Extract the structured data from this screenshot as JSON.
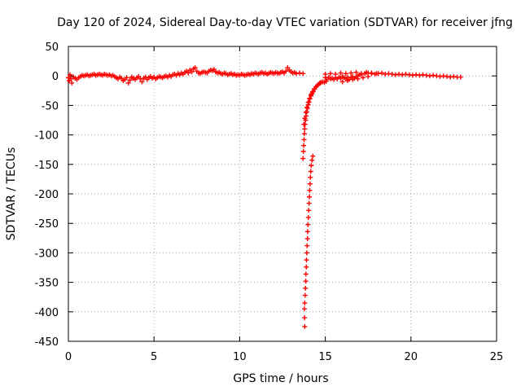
{
  "chart_data": {
    "type": "scatter",
    "title": "Day 120 of 2024, Sidereal Day-to-day VTEC variation (SDTVAR) for receiver jfng",
    "xlabel": "GPS time / hours",
    "ylabel": "SDTVAR / TECUs",
    "xlim": [
      0,
      25
    ],
    "ylim": [
      -450,
      50
    ],
    "xticks": [
      0,
      5,
      10,
      15,
      20,
      25
    ],
    "yticks": [
      50,
      0,
      -50,
      -100,
      -150,
      -200,
      -250,
      -300,
      -350,
      -400,
      -450
    ],
    "grid": true,
    "marker": "plus",
    "series_color": "#ff0000",
    "series": [
      {
        "name": "SDTVAR",
        "points": [
          [
            0.0,
            -3
          ],
          [
            0.05,
            -8
          ],
          [
            0.1,
            2
          ],
          [
            0.15,
            -5
          ],
          [
            0.2,
            -12
          ],
          [
            0.3,
            -2
          ],
          [
            0.4,
            -4
          ],
          [
            0.5,
            -6
          ],
          [
            0.6,
            -3
          ],
          [
            0.7,
            -1
          ],
          [
            0.8,
            1
          ],
          [
            0.9,
            0
          ],
          [
            1.0,
            1
          ],
          [
            1.1,
            2
          ],
          [
            1.2,
            0
          ],
          [
            1.3,
            1
          ],
          [
            1.4,
            2
          ],
          [
            1.5,
            3
          ],
          [
            1.6,
            1
          ],
          [
            1.7,
            2
          ],
          [
            1.8,
            3
          ],
          [
            1.9,
            2
          ],
          [
            2.0,
            1
          ],
          [
            2.1,
            3
          ],
          [
            2.2,
            2
          ],
          [
            2.3,
            1
          ],
          [
            2.4,
            2
          ],
          [
            2.5,
            0
          ],
          [
            2.6,
            1
          ],
          [
            2.7,
            -1
          ],
          [
            2.8,
            -3
          ],
          [
            2.9,
            -5
          ],
          [
            3.0,
            -2
          ],
          [
            3.1,
            -4
          ],
          [
            3.2,
            -8
          ],
          [
            3.3,
            -6
          ],
          [
            3.4,
            -3
          ],
          [
            3.5,
            -12
          ],
          [
            3.6,
            -7
          ],
          [
            3.7,
            -2
          ],
          [
            3.8,
            -4
          ],
          [
            3.9,
            -6
          ],
          [
            4.0,
            -3
          ],
          [
            4.1,
            -1
          ],
          [
            4.2,
            -5
          ],
          [
            4.3,
            -10
          ],
          [
            4.4,
            -4
          ],
          [
            4.5,
            -2
          ],
          [
            4.6,
            -6
          ],
          [
            4.7,
            -3
          ],
          [
            4.8,
            -1
          ],
          [
            4.9,
            -4
          ],
          [
            5.0,
            -2
          ],
          [
            5.1,
            -5
          ],
          [
            5.2,
            -3
          ],
          [
            5.3,
            -1
          ],
          [
            5.4,
            -2
          ],
          [
            5.5,
            -3
          ],
          [
            5.6,
            -1
          ],
          [
            5.7,
            0
          ],
          [
            5.8,
            -2
          ],
          [
            5.9,
            1
          ],
          [
            6.0,
            -1
          ],
          [
            6.1,
            2
          ],
          [
            6.2,
            3
          ],
          [
            6.3,
            1
          ],
          [
            6.4,
            4
          ],
          [
            6.5,
            2
          ],
          [
            6.6,
            5
          ],
          [
            6.7,
            3
          ],
          [
            6.8,
            6
          ],
          [
            6.9,
            8
          ],
          [
            7.0,
            5
          ],
          [
            7.1,
            10
          ],
          [
            7.2,
            7
          ],
          [
            7.3,
            12
          ],
          [
            7.4,
            14
          ],
          [
            7.5,
            8
          ],
          [
            7.6,
            5
          ],
          [
            7.7,
            4
          ],
          [
            7.8,
            6
          ],
          [
            7.9,
            7
          ],
          [
            8.0,
            6
          ],
          [
            8.1,
            5
          ],
          [
            8.2,
            8
          ],
          [
            8.3,
            10
          ],
          [
            8.4,
            9
          ],
          [
            8.5,
            11
          ],
          [
            8.6,
            7
          ],
          [
            8.7,
            5
          ],
          [
            8.8,
            6
          ],
          [
            8.9,
            4
          ],
          [
            9.0,
            3
          ],
          [
            9.1,
            5
          ],
          [
            9.2,
            4
          ],
          [
            9.3,
            2
          ],
          [
            9.4,
            3
          ],
          [
            9.5,
            4
          ],
          [
            9.6,
            2
          ],
          [
            9.7,
            3
          ],
          [
            9.8,
            1
          ],
          [
            9.9,
            2
          ],
          [
            10.0,
            1
          ],
          [
            10.1,
            3
          ],
          [
            10.2,
            2
          ],
          [
            10.3,
            1
          ],
          [
            10.4,
            2
          ],
          [
            10.5,
            3
          ],
          [
            10.6,
            2
          ],
          [
            10.7,
            4
          ],
          [
            10.8,
            3
          ],
          [
            10.9,
            5
          ],
          [
            11.0,
            4
          ],
          [
            11.1,
            3
          ],
          [
            11.2,
            5
          ],
          [
            11.3,
            6
          ],
          [
            11.4,
            4
          ],
          [
            11.5,
            5
          ],
          [
            11.6,
            3
          ],
          [
            11.7,
            4
          ],
          [
            11.8,
            6
          ],
          [
            11.9,
            5
          ],
          [
            12.0,
            4
          ],
          [
            12.1,
            6
          ],
          [
            12.2,
            5
          ],
          [
            12.3,
            4
          ],
          [
            12.4,
            6
          ],
          [
            12.5,
            7
          ],
          [
            12.6,
            5
          ],
          [
            12.7,
            8
          ],
          [
            12.8,
            14
          ],
          [
            12.9,
            10
          ],
          [
            13.0,
            7
          ],
          [
            13.1,
            5
          ],
          [
            13.2,
            6
          ],
          [
            13.3,
            4
          ],
          [
            13.5,
            5
          ],
          [
            13.7,
            4
          ],
          [
            13.8,
            -425
          ],
          [
            13.79,
            -410
          ],
          [
            13.78,
            -395
          ],
          [
            13.8,
            -385
          ],
          [
            13.82,
            -372
          ],
          [
            13.84,
            -360
          ],
          [
            13.86,
            -348
          ],
          [
            13.87,
            -336
          ],
          [
            13.89,
            -324
          ],
          [
            13.9,
            -312
          ],
          [
            13.92,
            -300
          ],
          [
            13.94,
            -288
          ],
          [
            13.96,
            -276
          ],
          [
            13.97,
            -264
          ],
          [
            13.99,
            -252
          ],
          [
            14.01,
            -240
          ],
          [
            14.03,
            -228
          ],
          [
            14.05,
            -216
          ],
          [
            14.07,
            -205
          ],
          [
            14.09,
            -194
          ],
          [
            14.11,
            -183
          ],
          [
            14.13,
            -172
          ],
          [
            14.15,
            -162
          ],
          [
            14.18,
            -152
          ],
          [
            14.22,
            -143
          ],
          [
            14.27,
            -136
          ],
          [
            13.7,
            -140
          ],
          [
            13.72,
            -128
          ],
          [
            13.74,
            -118
          ],
          [
            13.76,
            -108
          ],
          [
            13.78,
            -98
          ],
          [
            13.8,
            -90
          ],
          [
            13.82,
            -82
          ],
          [
            13.85,
            -75
          ],
          [
            13.88,
            -68
          ],
          [
            13.92,
            -61
          ],
          [
            13.96,
            -55
          ],
          [
            14.0,
            -49
          ],
          [
            14.05,
            -44
          ],
          [
            14.1,
            -39
          ],
          [
            14.16,
            -34
          ],
          [
            14.22,
            -30
          ],
          [
            14.3,
            -26
          ],
          [
            14.38,
            -22
          ],
          [
            14.46,
            -19
          ],
          [
            14.55,
            -16
          ],
          [
            14.65,
            -13
          ],
          [
            14.75,
            -11
          ],
          [
            14.85,
            -10
          ],
          [
            14.95,
            -11
          ],
          [
            15.05,
            -9
          ],
          [
            13.75,
            -82
          ],
          [
            13.8,
            -72
          ],
          [
            13.86,
            -62
          ],
          [
            13.93,
            -53
          ],
          [
            14.0,
            -45
          ],
          [
            14.08,
            -38
          ],
          [
            14.17,
            -32
          ],
          [
            14.26,
            -27
          ],
          [
            14.36,
            -22
          ],
          [
            14.47,
            -18
          ],
          [
            14.58,
            -15
          ],
          [
            14.7,
            -12
          ],
          [
            15.0,
            -3
          ],
          [
            15.1,
            -6
          ],
          [
            15.2,
            -2
          ],
          [
            15.3,
            -5
          ],
          [
            15.4,
            -4
          ],
          [
            15.5,
            -6
          ],
          [
            15.6,
            -3
          ],
          [
            15.7,
            -5
          ],
          [
            15.8,
            -2
          ],
          [
            15.9,
            -4
          ],
          [
            16.0,
            -1
          ],
          [
            16.1,
            -3
          ],
          [
            16.2,
            -5
          ],
          [
            16.3,
            -2
          ],
          [
            16.4,
            -6
          ],
          [
            16.5,
            -3
          ],
          [
            16.6,
            -1
          ],
          [
            16.7,
            -4
          ],
          [
            16.8,
            -2
          ],
          [
            16.9,
            0
          ],
          [
            17.0,
            2
          ],
          [
            15.0,
            3
          ],
          [
            15.3,
            4
          ],
          [
            15.6,
            3
          ],
          [
            15.9,
            5
          ],
          [
            16.2,
            4
          ],
          [
            16.5,
            5
          ],
          [
            16.8,
            6
          ],
          [
            17.1,
            4
          ],
          [
            17.4,
            6
          ],
          [
            17.7,
            5
          ],
          [
            18.0,
            4
          ],
          [
            16.0,
            -10
          ],
          [
            16.3,
            -8
          ],
          [
            16.6,
            -6
          ],
          [
            16.9,
            -5
          ],
          [
            17.2,
            -3
          ],
          [
            17.5,
            -1
          ],
          [
            17.1,
            3
          ],
          [
            17.3,
            4
          ],
          [
            17.5,
            5
          ],
          [
            17.7,
            4
          ],
          [
            17.9,
            3
          ],
          [
            18.1,
            4
          ],
          [
            18.3,
            5
          ],
          [
            18.5,
            3
          ],
          [
            18.7,
            4
          ],
          [
            18.9,
            3
          ],
          [
            19.1,
            2
          ],
          [
            19.3,
            3
          ],
          [
            19.5,
            2
          ],
          [
            19.7,
            3
          ],
          [
            19.9,
            2
          ],
          [
            20.1,
            1
          ],
          [
            20.3,
            2
          ],
          [
            20.5,
            1
          ],
          [
            20.7,
            2
          ],
          [
            20.9,
            1
          ],
          [
            21.1,
            0
          ],
          [
            21.3,
            1
          ],
          [
            21.5,
            0
          ],
          [
            21.7,
            -1
          ],
          [
            21.9,
            0
          ],
          [
            22.1,
            -1
          ],
          [
            22.3,
            -2
          ],
          [
            22.5,
            -1
          ],
          [
            22.7,
            -2
          ],
          [
            22.9,
            -2
          ]
        ]
      }
    ]
  }
}
